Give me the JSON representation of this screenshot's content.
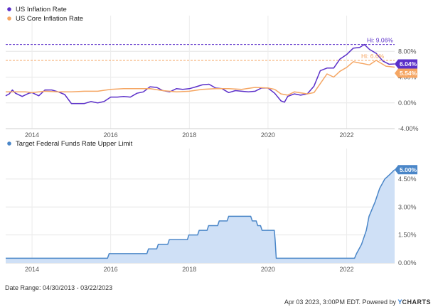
{
  "chart_data": [
    {
      "type": "line",
      "x_range": [
        2013.33,
        2023.22
      ],
      "x_ticks": [
        "2014",
        "2016",
        "2018",
        "2020",
        "2022"
      ],
      "ylim": [
        -4,
        12
      ],
      "y_ticks": [
        "8.00%",
        "4.00%",
        "0.00%",
        "-4.00%"
      ],
      "y_tick_values": [
        8,
        4,
        0,
        -4
      ],
      "legend_position": "top-left",
      "grid": true,
      "series": [
        {
          "name": "US Inflation Rate",
          "color": "#5b2fc9",
          "hi_label": "Hi: 9.06%",
          "hi_value": 9.06,
          "last_label": "6.04%",
          "points": [
            [
              2013.33,
              1.1
            ],
            [
              2013.42,
              1.4
            ],
            [
              2013.5,
              2.0
            ],
            [
              2013.58,
              1.5
            ],
            [
              2013.75,
              1.0
            ],
            [
              2013.92,
              1.5
            ],
            [
              2014.0,
              1.6
            ],
            [
              2014.17,
              1.1
            ],
            [
              2014.33,
              2.0
            ],
            [
              2014.5,
              2.0
            ],
            [
              2014.67,
              1.7
            ],
            [
              2014.83,
              1.3
            ],
            [
              2015.0,
              -0.1
            ],
            [
              2015.17,
              -0.1
            ],
            [
              2015.33,
              -0.1
            ],
            [
              2015.5,
              0.2
            ],
            [
              2015.67,
              0.0
            ],
            [
              2015.83,
              0.2
            ],
            [
              2016.0,
              0.9
            ],
            [
              2016.17,
              0.9
            ],
            [
              2016.33,
              1.0
            ],
            [
              2016.5,
              0.9
            ],
            [
              2016.67,
              1.5
            ],
            [
              2016.83,
              1.7
            ],
            [
              2017.0,
              2.5
            ],
            [
              2017.17,
              2.4
            ],
            [
              2017.33,
              1.9
            ],
            [
              2017.5,
              1.7
            ],
            [
              2017.67,
              2.2
            ],
            [
              2017.83,
              2.1
            ],
            [
              2018.0,
              2.2
            ],
            [
              2018.17,
              2.5
            ],
            [
              2018.33,
              2.8
            ],
            [
              2018.5,
              2.9
            ],
            [
              2018.67,
              2.3
            ],
            [
              2018.83,
              2.2
            ],
            [
              2019.0,
              1.6
            ],
            [
              2019.17,
              1.9
            ],
            [
              2019.33,
              1.8
            ],
            [
              2019.5,
              1.7
            ],
            [
              2019.67,
              1.8
            ],
            [
              2019.83,
              2.3
            ],
            [
              2020.0,
              2.3
            ],
            [
              2020.17,
              1.5
            ],
            [
              2020.33,
              0.3
            ],
            [
              2020.42,
              0.1
            ],
            [
              2020.5,
              1.0
            ],
            [
              2020.67,
              1.4
            ],
            [
              2020.83,
              1.2
            ],
            [
              2021.0,
              1.4
            ],
            [
              2021.17,
              2.6
            ],
            [
              2021.33,
              5.0
            ],
            [
              2021.5,
              5.4
            ],
            [
              2021.67,
              5.4
            ],
            [
              2021.83,
              6.8
            ],
            [
              2022.0,
              7.5
            ],
            [
              2022.17,
              8.5
            ],
            [
              2022.33,
              8.6
            ],
            [
              2022.45,
              9.06
            ],
            [
              2022.58,
              8.3
            ],
            [
              2022.75,
              7.7
            ],
            [
              2022.92,
              6.5
            ],
            [
              2023.08,
              6.0
            ],
            [
              2023.22,
              6.04
            ]
          ]
        },
        {
          "name": "US Core Inflation Rate",
          "color": "#f5a663",
          "hi_label": "Hi: 6.6%",
          "hi_value": 6.6,
          "last_label": "5.54%",
          "points": [
            [
              2013.33,
              1.7
            ],
            [
              2013.58,
              1.7
            ],
            [
              2013.83,
              1.7
            ],
            [
              2014.0,
              1.6
            ],
            [
              2014.33,
              1.8
            ],
            [
              2014.67,
              1.7
            ],
            [
              2015.0,
              1.7
            ],
            [
              2015.33,
              1.8
            ],
            [
              2015.67,
              1.8
            ],
            [
              2016.0,
              2.1
            ],
            [
              2016.33,
              2.2
            ],
            [
              2016.67,
              2.2
            ],
            [
              2017.0,
              2.2
            ],
            [
              2017.33,
              1.9
            ],
            [
              2017.67,
              1.7
            ],
            [
              2018.0,
              1.8
            ],
            [
              2018.33,
              2.1
            ],
            [
              2018.67,
              2.2
            ],
            [
              2019.0,
              2.2
            ],
            [
              2019.33,
              2.1
            ],
            [
              2019.67,
              2.4
            ],
            [
              2020.0,
              2.3
            ],
            [
              2020.17,
              2.1
            ],
            [
              2020.33,
              1.4
            ],
            [
              2020.5,
              1.2
            ],
            [
              2020.67,
              1.7
            ],
            [
              2021.0,
              1.4
            ],
            [
              2021.17,
              1.6
            ],
            [
              2021.33,
              3.0
            ],
            [
              2021.5,
              4.5
            ],
            [
              2021.67,
              4.0
            ],
            [
              2021.83,
              4.9
            ],
            [
              2022.0,
              5.5
            ],
            [
              2022.17,
              6.4
            ],
            [
              2022.33,
              6.2
            ],
            [
              2022.58,
              5.9
            ],
            [
              2022.75,
              6.6
            ],
            [
              2023.0,
              5.7
            ],
            [
              2023.22,
              5.54
            ]
          ]
        }
      ]
    },
    {
      "type": "area",
      "x_range": [
        2013.33,
        2023.22
      ],
      "x_ticks": [
        "2014",
        "2016",
        "2018",
        "2020",
        "2022"
      ],
      "ylim": [
        0,
        5.6
      ],
      "y_ticks": [
        "4.50%",
        "3.00%",
        "1.50%",
        "0.00%"
      ],
      "y_tick_values": [
        4.5,
        3,
        1.5,
        0
      ],
      "legend_position": "top-left",
      "grid": true,
      "series": [
        {
          "name": "Target Federal Funds Rate Upper Limit",
          "color": "#4a86c8",
          "fill": "#cfe0f6",
          "last_label": "5.00%",
          "points": [
            [
              2013.33,
              0.25
            ],
            [
              2015.92,
              0.25
            ],
            [
              2015.96,
              0.5
            ],
            [
              2016.92,
              0.5
            ],
            [
              2016.96,
              0.75
            ],
            [
              2017.17,
              0.75
            ],
            [
              2017.21,
              1.0
            ],
            [
              2017.45,
              1.0
            ],
            [
              2017.49,
              1.25
            ],
            [
              2017.95,
              1.25
            ],
            [
              2017.99,
              1.5
            ],
            [
              2018.21,
              1.5
            ],
            [
              2018.25,
              1.75
            ],
            [
              2018.45,
              1.75
            ],
            [
              2018.49,
              2.0
            ],
            [
              2018.72,
              2.0
            ],
            [
              2018.76,
              2.25
            ],
            [
              2018.96,
              2.25
            ],
            [
              2019.0,
              2.5
            ],
            [
              2019.56,
              2.5
            ],
            [
              2019.6,
              2.25
            ],
            [
              2019.7,
              2.25
            ],
            [
              2019.74,
              2.0
            ],
            [
              2019.81,
              2.0
            ],
            [
              2019.85,
              1.75
            ],
            [
              2020.16,
              1.75
            ],
            [
              2020.18,
              1.25
            ],
            [
              2020.21,
              0.25
            ],
            [
              2022.2,
              0.25
            ],
            [
              2022.25,
              0.5
            ],
            [
              2022.38,
              1.0
            ],
            [
              2022.5,
              1.75
            ],
            [
              2022.57,
              2.5
            ],
            [
              2022.72,
              3.25
            ],
            [
              2022.84,
              4.0
            ],
            [
              2022.97,
              4.5
            ],
            [
              2023.1,
              4.75
            ],
            [
              2023.22,
              5.0
            ]
          ]
        }
      ]
    }
  ],
  "footer": {
    "date_range": "Date Range: 04/30/2013 - 03/22/2023",
    "credit_prefix": "Apr 03 2023, 3:00PM EDT. Powered by ",
    "brand_y": "Y",
    "brand_rest": "CHARTS"
  }
}
